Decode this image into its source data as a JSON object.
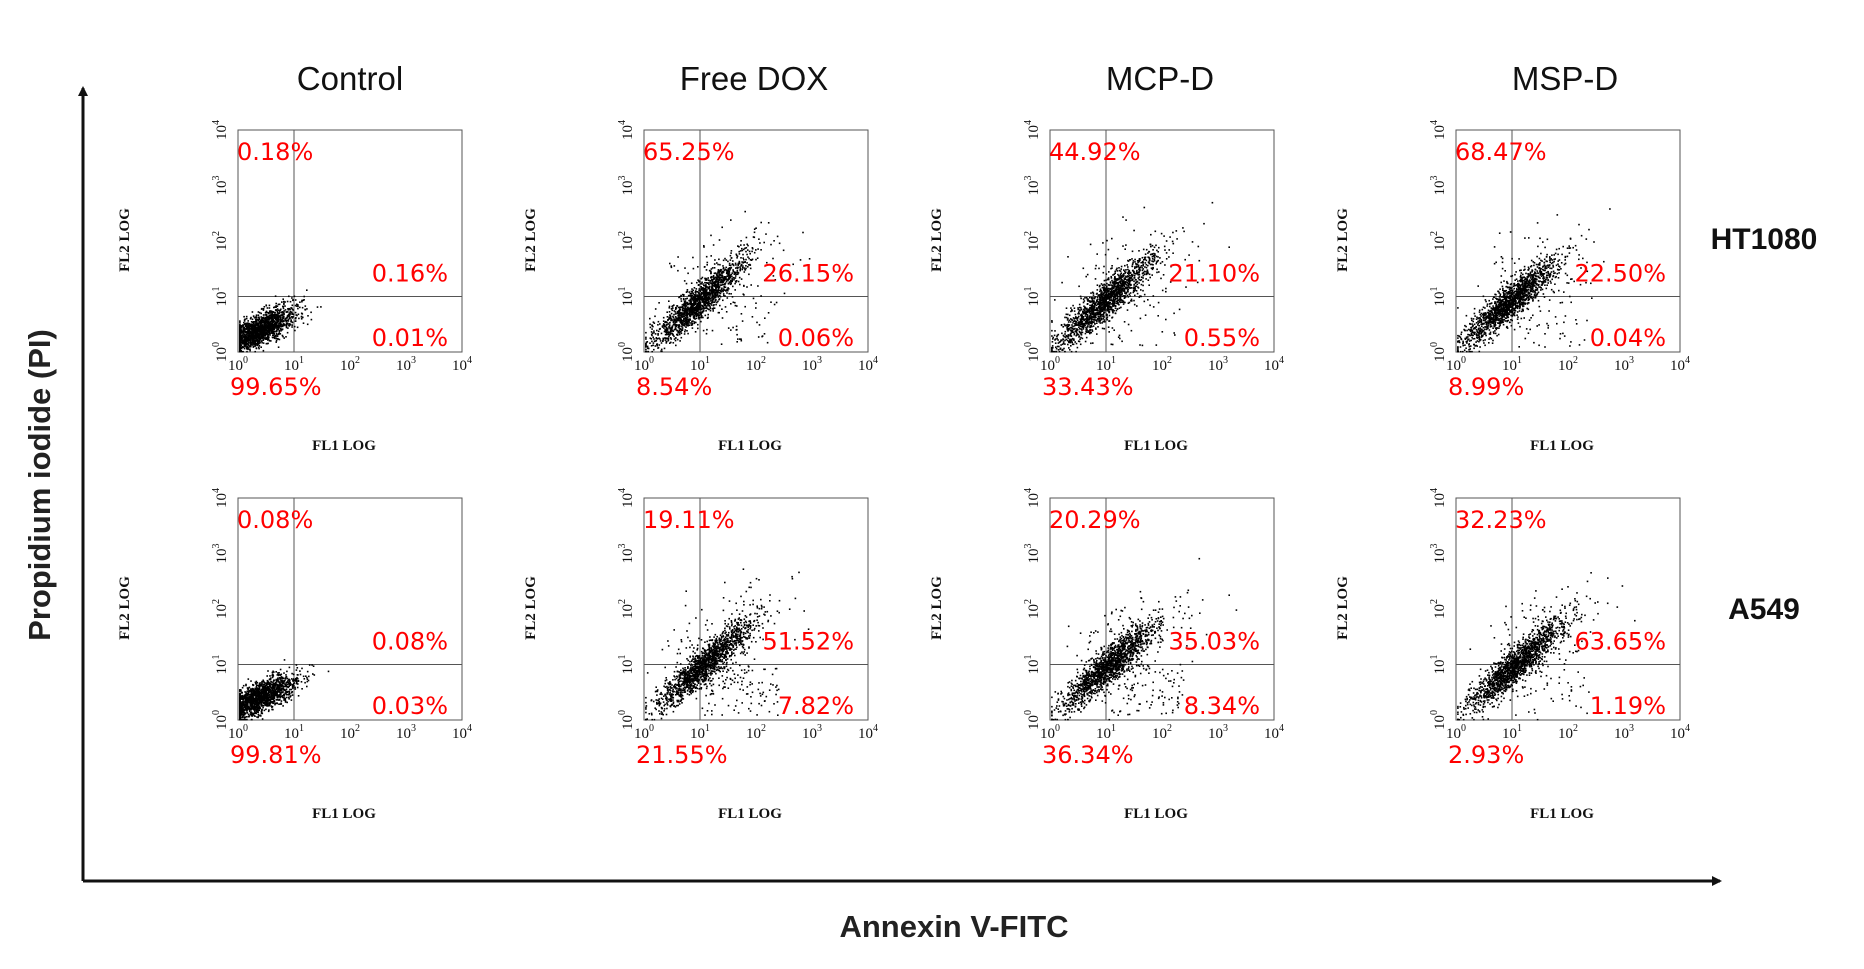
{
  "chart_data": {
    "type": "scatter",
    "title": "",
    "x_axis_title": "Annexin V-FITC",
    "y_axis_title": "Propidium iodide (PI)",
    "panel_xlabel": "FL1 LOG",
    "panel_ylabel": "FL2 LOG",
    "x_scale": "log",
    "y_scale": "log",
    "xlim": [
      1,
      10000
    ],
    "ylim": [
      1,
      10000
    ],
    "x_ticks": [
      "10^0",
      "10^1",
      "10^2",
      "10^3",
      "10^4"
    ],
    "y_ticks": [
      "10^0",
      "10^1",
      "10^2",
      "10^3",
      "10^4"
    ],
    "tick_base": "10",
    "tick_exponents": [
      "0",
      "1",
      "2",
      "3",
      "4"
    ],
    "quadrant_gate": {
      "x": 10,
      "y": 10
    },
    "columns": [
      "Control",
      "Free DOX",
      "MCP-D",
      "MSP-D"
    ],
    "rows": [
      "HT1080",
      "A549"
    ],
    "panels": [
      {
        "row": "HT1080",
        "column": "Control",
        "upper_left": "0.18%",
        "upper_right": "0.16%",
        "lower_right": "0.01%",
        "lower_left": "99.65%"
      },
      {
        "row": "HT1080",
        "column": "Free DOX",
        "upper_left": "65.25%",
        "upper_right": "26.15%",
        "lower_right": "0.06%",
        "lower_left": "8.54%"
      },
      {
        "row": "HT1080",
        "column": "MCP-D",
        "upper_left": "44.92%",
        "upper_right": "21.10%",
        "lower_right": "0.55%",
        "lower_left": "33.43%"
      },
      {
        "row": "HT1080",
        "column": "MSP-D",
        "upper_left": "68.47%",
        "upper_right": "22.50%",
        "lower_right": "0.04%",
        "lower_left": "8.99%"
      },
      {
        "row": "A549",
        "column": "Control",
        "upper_left": "0.08%",
        "upper_right": "0.08%",
        "lower_right": "0.03%",
        "lower_left": "99.81%"
      },
      {
        "row": "A549",
        "column": "Free DOX",
        "upper_left": "19.11%",
        "upper_right": "51.52%",
        "lower_right": "7.82%",
        "lower_left": "21.55%"
      },
      {
        "row": "A549",
        "column": "MCP-D",
        "upper_left": "20.29%",
        "upper_right": "35.03%",
        "lower_right": "8.34%",
        "lower_left": "36.34%"
      },
      {
        "row": "A549",
        "column": "MSP-D",
        "upper_left": "32.23%",
        "upper_right": "63.65%",
        "lower_right": "1.19%",
        "lower_left": "2.93%"
      }
    ],
    "colors": {
      "quadrant_percent": "#ff0000",
      "points": "#000000",
      "axes": "#111111"
    }
  }
}
